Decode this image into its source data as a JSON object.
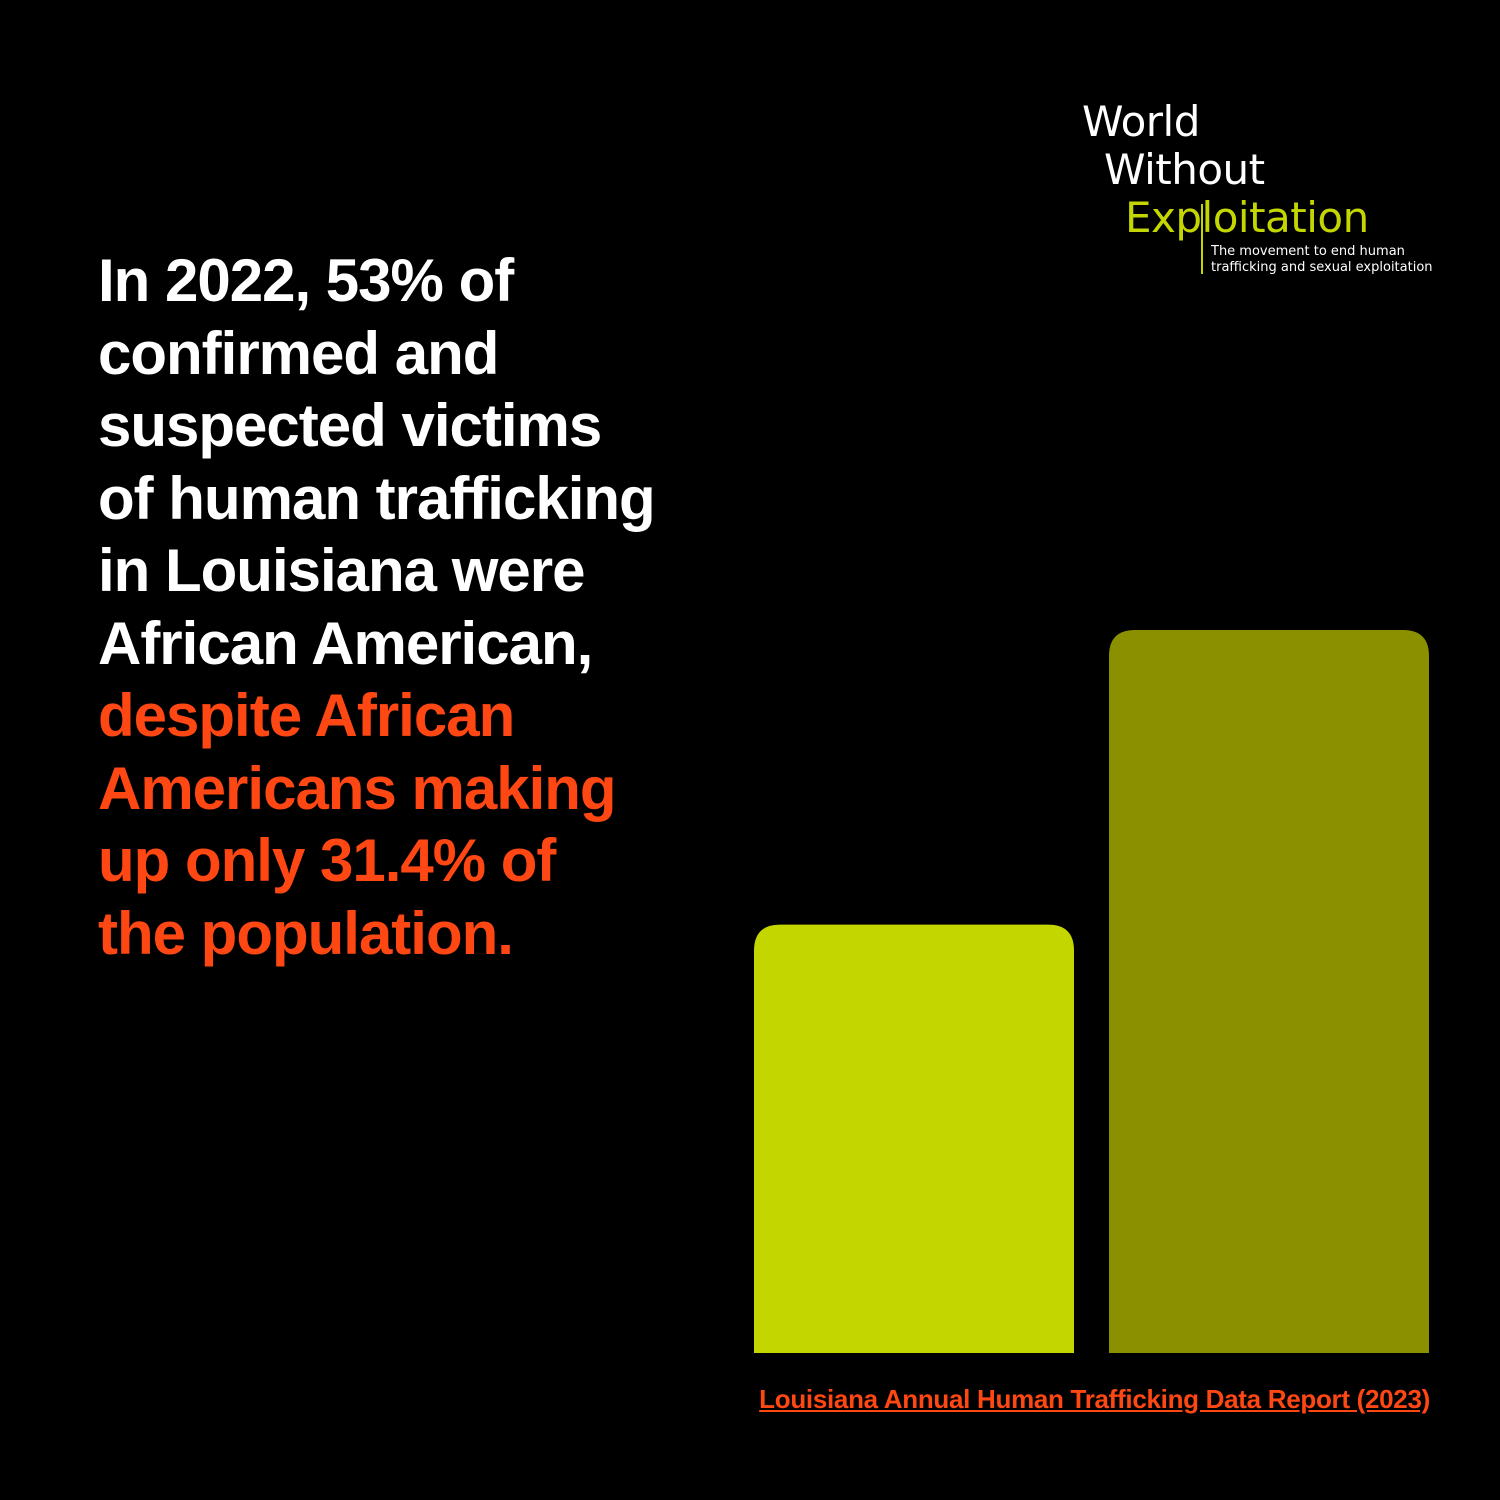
{
  "logo": {
    "line1": "World",
    "line2": "Without",
    "line3": "Exploitation",
    "tagline_line1": "The movement to end human",
    "tagline_line2": "trafficking and sexual exploitation"
  },
  "headline": {
    "white_lines": [
      "In 2022, 53% of",
      "confirmed and",
      "suspected victims",
      "of human trafficking",
      "in Louisiana were",
      "African American,"
    ],
    "accent_lines": [
      "despite African",
      "Americans making",
      "up only 31.4% of",
      "the population."
    ]
  },
  "source_link": "Louisiana Annual Human Trafficking Data Report (2023)",
  "colors": {
    "background": "#000000",
    "headline_white": "#ffffff",
    "accent_orange": "#ff4713",
    "bar_population": "#c4d600",
    "bar_victims": "#8a9000"
  },
  "chart_data": {
    "type": "bar",
    "categories": [
      "",
      ""
    ],
    "values": [
      31.4,
      53
    ],
    "bar_colors": [
      "#c4d600",
      "#8a9000"
    ],
    "title": "",
    "xlabel": "",
    "ylabel": "",
    "ylim": [
      0,
      53
    ],
    "grid": false,
    "axes_visible": false
  }
}
